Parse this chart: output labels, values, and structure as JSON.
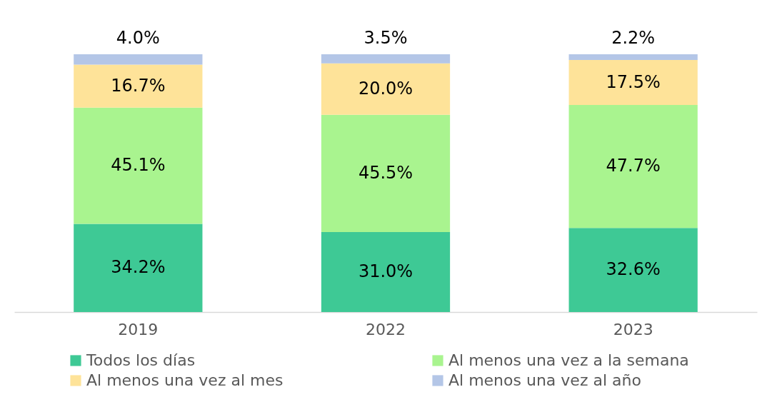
{
  "chart_data": {
    "type": "bar",
    "stacked": true,
    "categories": [
      "2019",
      "2022",
      "2023"
    ],
    "legend": "bottom",
    "series": [
      {
        "name": "Todos los días",
        "color": "#3ec995",
        "values": [
          34.2,
          31.0,
          32.6
        ],
        "value_labels": [
          "34.2%",
          "31.0%",
          "32.6%"
        ]
      },
      {
        "name": "Al menos una vez a la semana",
        "color": "#a9f48f",
        "values": [
          45.1,
          45.5,
          47.7
        ],
        "value_labels": [
          "45.1%",
          "45.5%",
          "47.7%"
        ]
      },
      {
        "name": "Al menos una vez al mes",
        "color": "#fee399",
        "values": [
          16.7,
          20.0,
          17.5
        ],
        "value_labels": [
          "16.7%",
          "20.0%",
          "17.5%"
        ]
      },
      {
        "name": "Al menos una vez al año",
        "color": "#b4c6e7",
        "values": [
          4.0,
          3.5,
          2.2
        ],
        "value_labels": [
          "4.0%",
          "3.5%",
          "2.2%"
        ]
      }
    ]
  }
}
